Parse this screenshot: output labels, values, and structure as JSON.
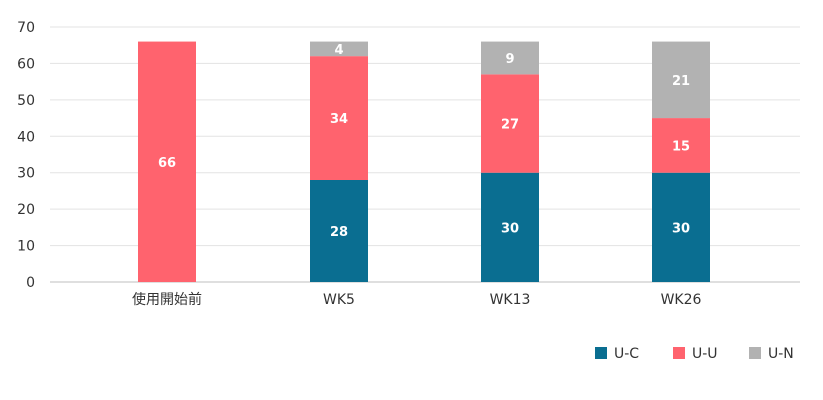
{
  "chart_data": {
    "type": "bar",
    "stacked": true,
    "categories": [
      "使用開始前",
      "WK5",
      "WK13",
      "WK26"
    ],
    "series": [
      {
        "name": "U-C",
        "color": "#0a6e91",
        "values": [
          0,
          28,
          30,
          30
        ]
      },
      {
        "name": "U-U",
        "color": "#ff636e",
        "values": [
          66,
          34,
          27,
          15
        ]
      },
      {
        "name": "U-N",
        "color": "#b2b2b2",
        "values": [
          0,
          4,
          9,
          21
        ]
      }
    ],
    "title": "",
    "xlabel": "",
    "ylabel": "",
    "ylim": [
      0,
      70
    ],
    "yticks": [
      0,
      10,
      20,
      30,
      40,
      50,
      60,
      70
    ],
    "grid": true,
    "legend_position": "bottom-right"
  }
}
